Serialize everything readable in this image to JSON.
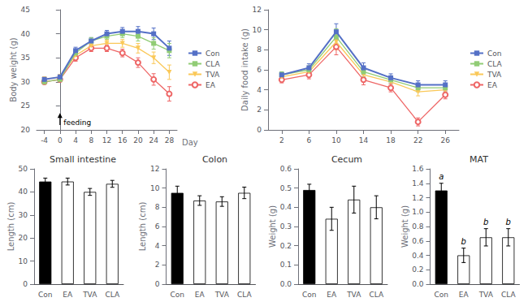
{
  "chart_data": [
    {
      "type": "line",
      "xlabel": "Day",
      "ylabel": "Body weight (g)",
      "x": [
        -4,
        0,
        4,
        8,
        12,
        16,
        20,
        24,
        28
      ],
      "series": [
        {
          "name": "Con",
          "marker": "square",
          "values": [
            30.5,
            31.0,
            36.5,
            38.5,
            40.0,
            40.5,
            40.5,
            40.0,
            37.0
          ],
          "errors": [
            0.5,
            0.5,
            0.7,
            0.7,
            0.7,
            0.8,
            1.0,
            1.2,
            1.5
          ]
        },
        {
          "name": "CLA",
          "marker": "square",
          "values": [
            30.0,
            30.5,
            36.0,
            38.5,
            39.5,
            40.0,
            39.5,
            38.0,
            36.5
          ],
          "errors": [
            0.5,
            0.5,
            0.7,
            0.7,
            0.7,
            0.8,
            1.0,
            1.2,
            1.5
          ]
        },
        {
          "name": "TVA",
          "marker": "triangle-down",
          "values": [
            30.5,
            31.0,
            35.5,
            37.5,
            38.0,
            38.0,
            37.0,
            35.0,
            32.0
          ],
          "errors": [
            0.5,
            0.5,
            0.7,
            0.7,
            0.7,
            0.8,
            1.0,
            1.2,
            1.5
          ]
        },
        {
          "name": "EA",
          "marker": "open-circle",
          "values": [
            30.0,
            30.5,
            35.0,
            37.0,
            37.0,
            36.0,
            34.0,
            30.5,
            27.5
          ],
          "errors": [
            0.5,
            0.5,
            0.7,
            0.7,
            0.7,
            0.8,
            1.0,
            1.2,
            1.5
          ]
        }
      ],
      "xlim": [
        -6,
        30
      ],
      "xticks": [
        -4,
        0,
        4,
        8,
        12,
        16,
        20,
        24,
        28
      ],
      "ylim": [
        20,
        45
      ],
      "yticks": [
        20,
        25,
        30,
        35,
        40,
        45
      ],
      "legend": "right",
      "grid": false,
      "annotations": [
        {
          "text": "feeding",
          "x": 0.5,
          "y": 20.8,
          "arrow": {
            "from": [
              0,
              21.0
            ],
            "to": [
              0,
              23.5
            ]
          }
        }
      ]
    },
    {
      "type": "line",
      "ylabel": "Daily food intake (g)",
      "x": [
        2,
        6,
        10,
        14,
        18,
        22,
        26
      ],
      "series": [
        {
          "name": "Con",
          "marker": "square",
          "values": [
            5.5,
            6.2,
            9.8,
            6.2,
            5.2,
            4.5,
            4.5
          ],
          "errors": [
            0.3,
            0.4,
            0.8,
            0.5,
            0.4,
            0.4,
            0.4
          ]
        },
        {
          "name": "CLA",
          "marker": "square",
          "values": [
            5.5,
            6.0,
            9.3,
            5.8,
            5.0,
            4.2,
            4.2
          ],
          "errors": [
            0.3,
            0.4,
            0.8,
            0.5,
            0.4,
            0.4,
            0.4
          ]
        },
        {
          "name": "TVA",
          "marker": "triangle-down",
          "values": [
            5.3,
            5.8,
            8.8,
            5.5,
            4.8,
            3.8,
            4.0
          ],
          "errors": [
            0.3,
            0.4,
            0.8,
            0.5,
            0.4,
            0.4,
            0.4
          ]
        },
        {
          "name": "EA",
          "marker": "open-circle",
          "values": [
            5.0,
            5.5,
            8.3,
            5.0,
            4.2,
            0.8,
            3.5
          ],
          "errors": [
            0.3,
            0.4,
            0.8,
            0.5,
            0.4,
            0.4,
            0.4
          ]
        }
      ],
      "xlim": [
        0,
        28
      ],
      "xticks": [
        2,
        6,
        10,
        14,
        18,
        22,
        26
      ],
      "ylim": [
        0,
        12
      ],
      "yticks": [
        0,
        2,
        4,
        6,
        8,
        10,
        12
      ],
      "legend": "right",
      "grid": false
    },
    {
      "type": "bar",
      "title": "Small intestine",
      "ylabel": "Length (cm)",
      "categories": [
        "Con",
        "EA",
        "TVA",
        "CLA"
      ],
      "values": [
        44.5,
        44.5,
        40.0,
        43.5
      ],
      "errors": [
        1.5,
        1.5,
        1.5,
        1.5
      ],
      "colors": [
        "#000000",
        "#ffffff",
        "#ffffff",
        "#ffffff"
      ],
      "ylim": [
        0,
        50
      ],
      "yticks": [
        0,
        10,
        20,
        30,
        40,
        50
      ],
      "grid": false
    },
    {
      "type": "bar",
      "title": "Colon",
      "ylabel": "Length (cm)",
      "categories": [
        "Con",
        "EA",
        "TVA",
        "CLA"
      ],
      "values": [
        9.5,
        8.7,
        8.6,
        9.5
      ],
      "errors": [
        0.7,
        0.5,
        0.5,
        0.6
      ],
      "colors": [
        "#000000",
        "#ffffff",
        "#ffffff",
        "#ffffff"
      ],
      "ylim": [
        0,
        12
      ],
      "yticks": [
        0,
        2,
        4,
        6,
        8,
        10,
        12
      ],
      "grid": false
    },
    {
      "type": "bar",
      "title": "Cecum",
      "ylabel": "Weight (g)",
      "categories": [
        "Con",
        "EA",
        "TVA",
        "CLA"
      ],
      "values": [
        0.49,
        0.34,
        0.44,
        0.4
      ],
      "errors": [
        0.03,
        0.06,
        0.07,
        0.06
      ],
      "colors": [
        "#000000",
        "#ffffff",
        "#ffffff",
        "#ffffff"
      ],
      "ylim": [
        0,
        0.6
      ],
      "yticks": [
        {
          "value": 0,
          "label": "0.0"
        },
        0.1,
        0.2,
        0.3,
        0.4,
        0.5,
        0.6
      ],
      "grid": false
    },
    {
      "type": "bar",
      "title": "MAT",
      "ylabel": "Weight (g)",
      "categories": [
        "Con",
        "EA",
        "TVA",
        "CLA"
      ],
      "values": [
        1.3,
        0.4,
        0.65,
        0.65
      ],
      "errors": [
        0.1,
        0.1,
        0.12,
        0.12
      ],
      "colors": [
        "#000000",
        "#ffffff",
        "#ffffff",
        "#ffffff"
      ],
      "ylim": [
        0,
        1.6
      ],
      "yticks": [
        {
          "value": 0,
          "label": "0.0"
        },
        0.2,
        0.4,
        0.6,
        0.8,
        {
          "value": 1,
          "label": "1.0"
        },
        1.2,
        1.4,
        1.6
      ],
      "grid": false,
      "annotations": [
        "a",
        "b",
        "b",
        "b"
      ]
    }
  ]
}
